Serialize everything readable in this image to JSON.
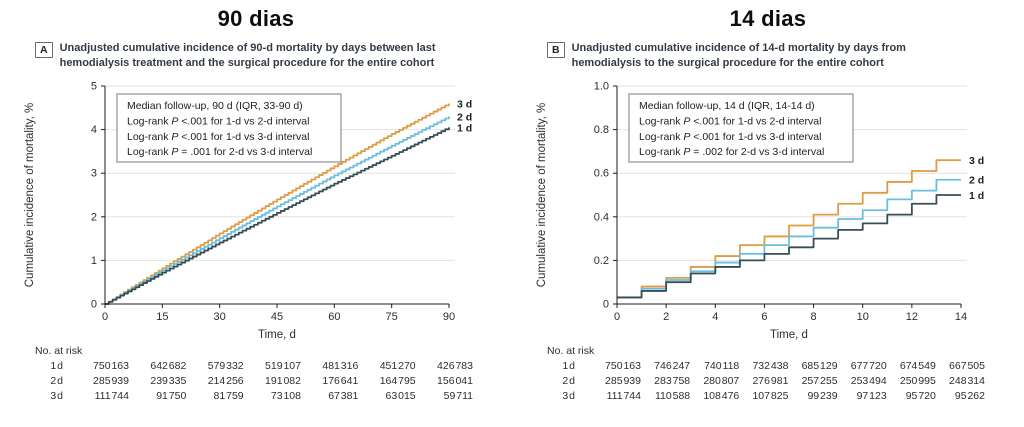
{
  "figure": {
    "panels": [
      {
        "title": "90 dias",
        "label": "A",
        "subtitle": [
          "Unadjusted cumulative incidence of 90-d mortality by days between last",
          "hemodialysis treatment and the surgical procedure for the entire cohort"
        ],
        "at_risk": {
          "header": "No. at risk",
          "rows": [
            {
              "label": "1 d",
              "values": [
                "750 163",
                "642 682",
                "579 332",
                "519 107",
                "481 316",
                "451 270",
                "426 783"
              ]
            },
            {
              "label": "2 d",
              "values": [
                "285 939",
                "239 335",
                "214 256",
                "191 082",
                "176 641",
                "164 795",
                "156 041"
              ]
            },
            {
              "label": "3 d",
              "values": [
                "111 744",
                "91 750",
                "81 759",
                "73 108",
                "67 381",
                "63 015",
                "59 711"
              ]
            }
          ]
        }
      },
      {
        "title": "14 dias",
        "label": "B",
        "subtitle": [
          "Unadjusted cumulative incidence of 14-d mortality by days from",
          "hemodialysis to the surgical procedure for the entire cohort"
        ],
        "at_risk": {
          "header": "No. at risk",
          "rows": [
            {
              "label": "1 d",
              "values": [
                "750 163",
                "746 247",
                "740 118",
                "732 438",
                "685 129",
                "677 720",
                "674 549",
                "667 505"
              ]
            },
            {
              "label": "2 d",
              "values": [
                "285 939",
                "283 758",
                "280 807",
                "276 981",
                "257 255",
                "253 494",
                "250 995",
                "248 314"
              ]
            },
            {
              "label": "3 d",
              "values": [
                "111 744",
                "110 588",
                "108 476",
                "107 825",
                "99 239",
                "97 123",
                "95 720",
                "95 262"
              ]
            }
          ]
        }
      }
    ]
  },
  "chart_data": [
    {
      "type": "line",
      "panel": "A",
      "title": "90 dias",
      "xlabel": "Time, d",
      "ylabel": "Cumulative incidence of mortality, %",
      "xlim": [
        0,
        90
      ],
      "ylim": [
        0,
        5
      ],
      "xticks": [
        0,
        15,
        30,
        45,
        60,
        75,
        90
      ],
      "xticklabels": [
        "0",
        "15",
        "30",
        "45",
        "60",
        "75",
        "90"
      ],
      "yticks": [
        0,
        1,
        2,
        3,
        4,
        5
      ],
      "yticklabels": [
        "0",
        "1",
        "2",
        "3",
        "4",
        "5"
      ],
      "grid": "horizontal",
      "curve_style": "daily-steps",
      "x_anchor": [
        0,
        15,
        30,
        45,
        60,
        75,
        90
      ],
      "series": [
        {
          "name": "3 d",
          "color": "#E09B44",
          "values": [
            0,
            0.82,
            1.62,
            2.4,
            3.16,
            3.9,
            4.6
          ]
        },
        {
          "name": "2 d",
          "color": "#6BBFDE",
          "values": [
            0,
            0.77,
            1.51,
            2.24,
            2.95,
            3.63,
            4.3
          ]
        },
        {
          "name": "1 d",
          "color": "#374E55",
          "values": [
            0,
            0.72,
            1.41,
            2.09,
            2.76,
            3.4,
            4.05
          ]
        }
      ],
      "legend_lines": [
        [
          {
            "t": "Median follow-up, 90 d (IQR, 33-90 d)",
            "i": false
          }
        ],
        [
          {
            "t": "Log-rank ",
            "i": false
          },
          {
            "t": "P",
            "i": true
          },
          {
            "t": " <.001 for 1-d vs 2-d interval",
            "i": false
          }
        ],
        [
          {
            "t": "Log-rank ",
            "i": false
          },
          {
            "t": "P",
            "i": true
          },
          {
            "t": " <.001 for 1-d vs 3-d interval",
            "i": false
          }
        ],
        [
          {
            "t": "Log-rank ",
            "i": false
          },
          {
            "t": "P",
            "i": true
          },
          {
            "t": " = .001 for 2-d vs 3-d interval",
            "i": false
          }
        ]
      ]
    },
    {
      "type": "step",
      "panel": "B",
      "title": "14 dias",
      "xlabel": "Time, d",
      "ylabel": "Cumulative incidence of mortality, %",
      "xlim": [
        0,
        14
      ],
      "ylim": [
        0,
        1.0
      ],
      "xticks": [
        0,
        2,
        4,
        6,
        8,
        10,
        12,
        14
      ],
      "xticklabels": [
        "0",
        "2",
        "4",
        "6",
        "8",
        "10",
        "12",
        "14"
      ],
      "yticks": [
        0,
        0.2,
        0.4,
        0.6,
        0.8,
        1.0
      ],
      "yticklabels": [
        "0",
        "0.2",
        "0.4",
        "0.6",
        "0.8",
        "1.0"
      ],
      "grid": "horizontal",
      "curve_style": "interval-steps",
      "series": [
        {
          "name": "3 d",
          "color": "#E09B44",
          "interval_values": [
            0.03,
            0.08,
            0.12,
            0.17,
            0.22,
            0.27,
            0.31,
            0.36,
            0.41,
            0.46,
            0.51,
            0.56,
            0.61,
            0.66
          ]
        },
        {
          "name": "2 d",
          "color": "#6BBFDE",
          "interval_values": [
            0.03,
            0.07,
            0.11,
            0.15,
            0.19,
            0.23,
            0.27,
            0.31,
            0.35,
            0.39,
            0.43,
            0.48,
            0.52,
            0.57
          ]
        },
        {
          "name": "1 d",
          "color": "#374E55",
          "interval_values": [
            0.03,
            0.06,
            0.1,
            0.14,
            0.17,
            0.2,
            0.23,
            0.26,
            0.3,
            0.34,
            0.37,
            0.41,
            0.46,
            0.5
          ]
        }
      ],
      "legend_lines": [
        [
          {
            "t": "Median follow-up, 14 d (IQR, 14-14 d)",
            "i": false
          }
        ],
        [
          {
            "t": "Log-rank ",
            "i": false
          },
          {
            "t": "P",
            "i": true
          },
          {
            "t": " <.001 for 1-d vs 2-d interval",
            "i": false
          }
        ],
        [
          {
            "t": "Log-rank ",
            "i": false
          },
          {
            "t": "P",
            "i": true
          },
          {
            "t": " <.001 for 1-d vs 3-d interval",
            "i": false
          }
        ],
        [
          {
            "t": "Log-rank ",
            "i": false
          },
          {
            "t": "P",
            "i": true
          },
          {
            "t": " = .002 for 2-d vs 3-d interval",
            "i": false
          }
        ]
      ]
    }
  ]
}
